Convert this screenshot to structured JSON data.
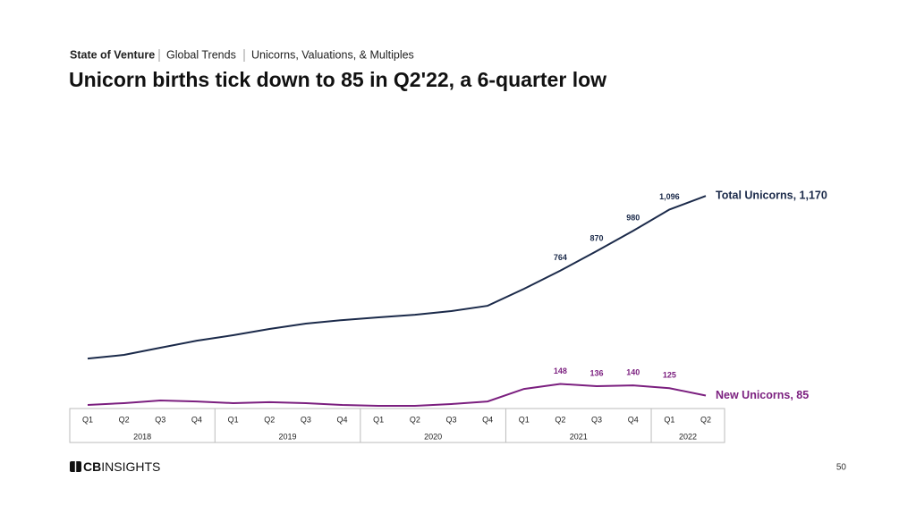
{
  "breadcrumb": [
    "State of Venture",
    "Global Trends",
    "Unicorns, Valuations, & Multiples"
  ],
  "page_number": "50",
  "logo": {
    "bold": "CB",
    "light": "INSIGHTS"
  },
  "chart_data": {
    "type": "line",
    "title": "Unicorn births tick down to 85 in Q2'22, a 6-quarter low",
    "categories": [
      "Q1",
      "Q2",
      "Q3",
      "Q4",
      "Q1",
      "Q2",
      "Q3",
      "Q4",
      "Q1",
      "Q2",
      "Q3",
      "Q4",
      "Q1",
      "Q2",
      "Q3",
      "Q4",
      "Q1",
      "Q2"
    ],
    "years": [
      "2018",
      "2019",
      "2020",
      "2021",
      "2022"
    ],
    "ylim": [
      0,
      1200
    ],
    "series": [
      {
        "color": "#1b2a4a",
        "end_label": "Total Unicorns, 1,170",
        "values": [
          286,
          306,
          345,
          383,
          413,
          447,
          476,
          495,
          510,
          524,
          544,
          573,
          665,
          764,
          870,
          980,
          1096,
          1170
        ],
        "value_labels": [
          null,
          null,
          null,
          null,
          null,
          null,
          null,
          null,
          null,
          null,
          null,
          null,
          null,
          "764",
          "870",
          "980",
          "1,096",
          null
        ]
      },
      {
        "color": "#7b1f7f",
        "end_label": "New Unicorns, 85",
        "values": [
          34,
          44,
          58,
          53,
          44,
          49,
          44,
          34,
          29,
          29,
          39,
          53,
          121,
          148,
          136,
          140,
          125,
          85
        ],
        "value_labels": [
          null,
          null,
          null,
          null,
          null,
          null,
          null,
          null,
          null,
          null,
          null,
          null,
          null,
          "148",
          "136",
          "140",
          "125",
          null
        ]
      }
    ]
  }
}
